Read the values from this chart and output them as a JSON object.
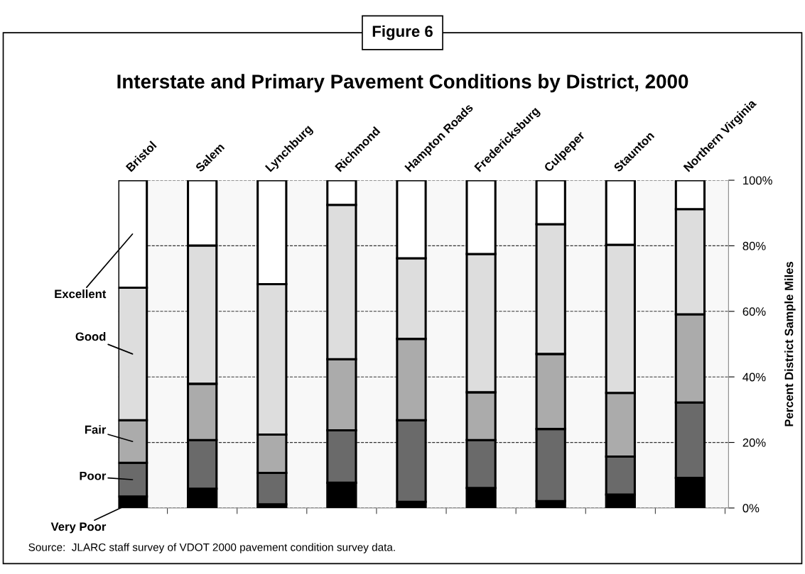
{
  "chart_data": {
    "type": "bar",
    "title": "Interstate and Primary Pavement Conditions by District, 2000",
    "categories": [
      "Bristol",
      "Salem",
      "Lynchburg",
      "Richmond",
      "Hampton Roads",
      "Fredericksburg",
      "Culpeper",
      "Staunton",
      "Northern Virginia"
    ],
    "stacked": true,
    "series": [
      {
        "name": "Very Poor",
        "color": "#000000",
        "values": [
          3.5,
          5.9,
          1.1,
          7.7,
          1.9,
          6.1,
          2.1,
          4.1,
          9.2
        ]
      },
      {
        "name": "Poor",
        "color": "#6a6a6a",
        "values": [
          10.3,
          14.8,
          9.6,
          16.0,
          24.9,
          14.6,
          22.0,
          11.6,
          23.0
        ]
      },
      {
        "name": "Fair",
        "color": "#ababab",
        "values": [
          13.0,
          17.2,
          11.7,
          21.7,
          24.8,
          14.6,
          22.9,
          19.4,
          26.9
        ]
      },
      {
        "name": "Good",
        "color": "#dddddd",
        "values": [
          40.4,
          42.2,
          45.9,
          47.1,
          24.6,
          42.2,
          39.6,
          45.2,
          32.1
        ]
      },
      {
        "name": "Excellent",
        "color": "#ffffff",
        "values": [
          32.8,
          19.9,
          31.7,
          7.5,
          23.8,
          22.5,
          13.4,
          19.7,
          8.8
        ]
      }
    ],
    "ylim": [
      0,
      100
    ],
    "yticks": [
      {
        "value": 0,
        "label": "0%"
      },
      {
        "value": 20,
        "label": "20%"
      },
      {
        "value": 40,
        "label": "40%"
      },
      {
        "value": 60,
        "label": "60%"
      },
      {
        "value": 80,
        "label": "80%"
      },
      {
        "value": 100,
        "label": "100%"
      }
    ],
    "y2label": "Percent District Sample Miles",
    "grid": "y",
    "legend": "left",
    "annotations": [
      "Figure 6",
      "Source:  JLARC staff survey of VDOT 2000 pavement condition survey data."
    ]
  }
}
